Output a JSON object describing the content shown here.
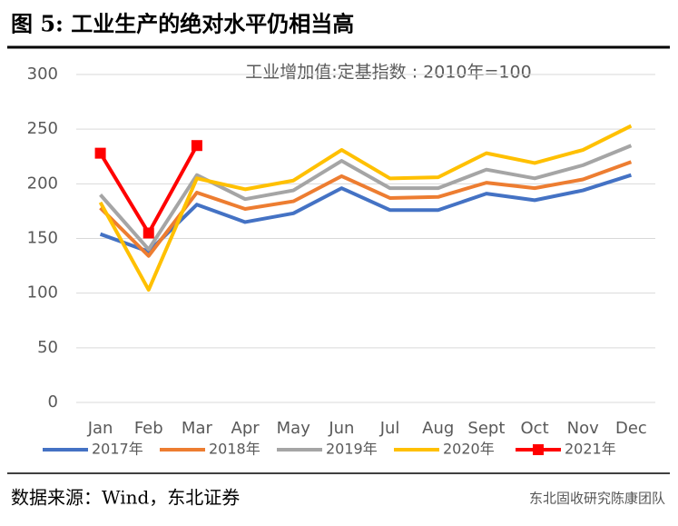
{
  "chart_data": {
    "type": "line",
    "title": "图  5:  工业生产的绝对水平仍相当高",
    "subtitle": "工业增加值:定基指数 : 2010年=100",
    "source": "数据来源：Wind，东北证券",
    "watermark": "东北固收研究陈康团队",
    "categories": [
      "Jan",
      "Feb",
      "Mar",
      "Apr",
      "May",
      "Jun",
      "Jul",
      "Aug",
      "Sept",
      "Oct",
      "Nov",
      "Dec"
    ],
    "series": [
      {
        "name": "2017年",
        "color": "#4472c4",
        "values": [
          154,
          138,
          181,
          165,
          173,
          196,
          176,
          176,
          191,
          185,
          194,
          208
        ]
      },
      {
        "name": "2018年",
        "color": "#ed7d31",
        "values": [
          178,
          134,
          192,
          177,
          184,
          207,
          187,
          188,
          201,
          196,
          204,
          220
        ]
      },
      {
        "name": "2019年",
        "color": "#a5a5a5",
        "values": [
          190,
          140,
          208,
          186,
          194,
          221,
          196,
          196,
          213,
          205,
          217,
          235
        ]
      },
      {
        "name": "2020年",
        "color": "#ffc000",
        "values": [
          183,
          103,
          205,
          195,
          203,
          231,
          205,
          206,
          228,
          219,
          231,
          253
        ]
      },
      {
        "name": "2021年",
        "color": "#ff0000",
        "marker": "square",
        "values": [
          228,
          155,
          235,
          null,
          null,
          null,
          null,
          null,
          null,
          null,
          null,
          null
        ]
      }
    ],
    "ylim": [
      0,
      300
    ],
    "yticks": [
      0,
      50,
      100,
      150,
      200,
      250,
      300
    ],
    "grid": true,
    "legend": "bottom"
  }
}
